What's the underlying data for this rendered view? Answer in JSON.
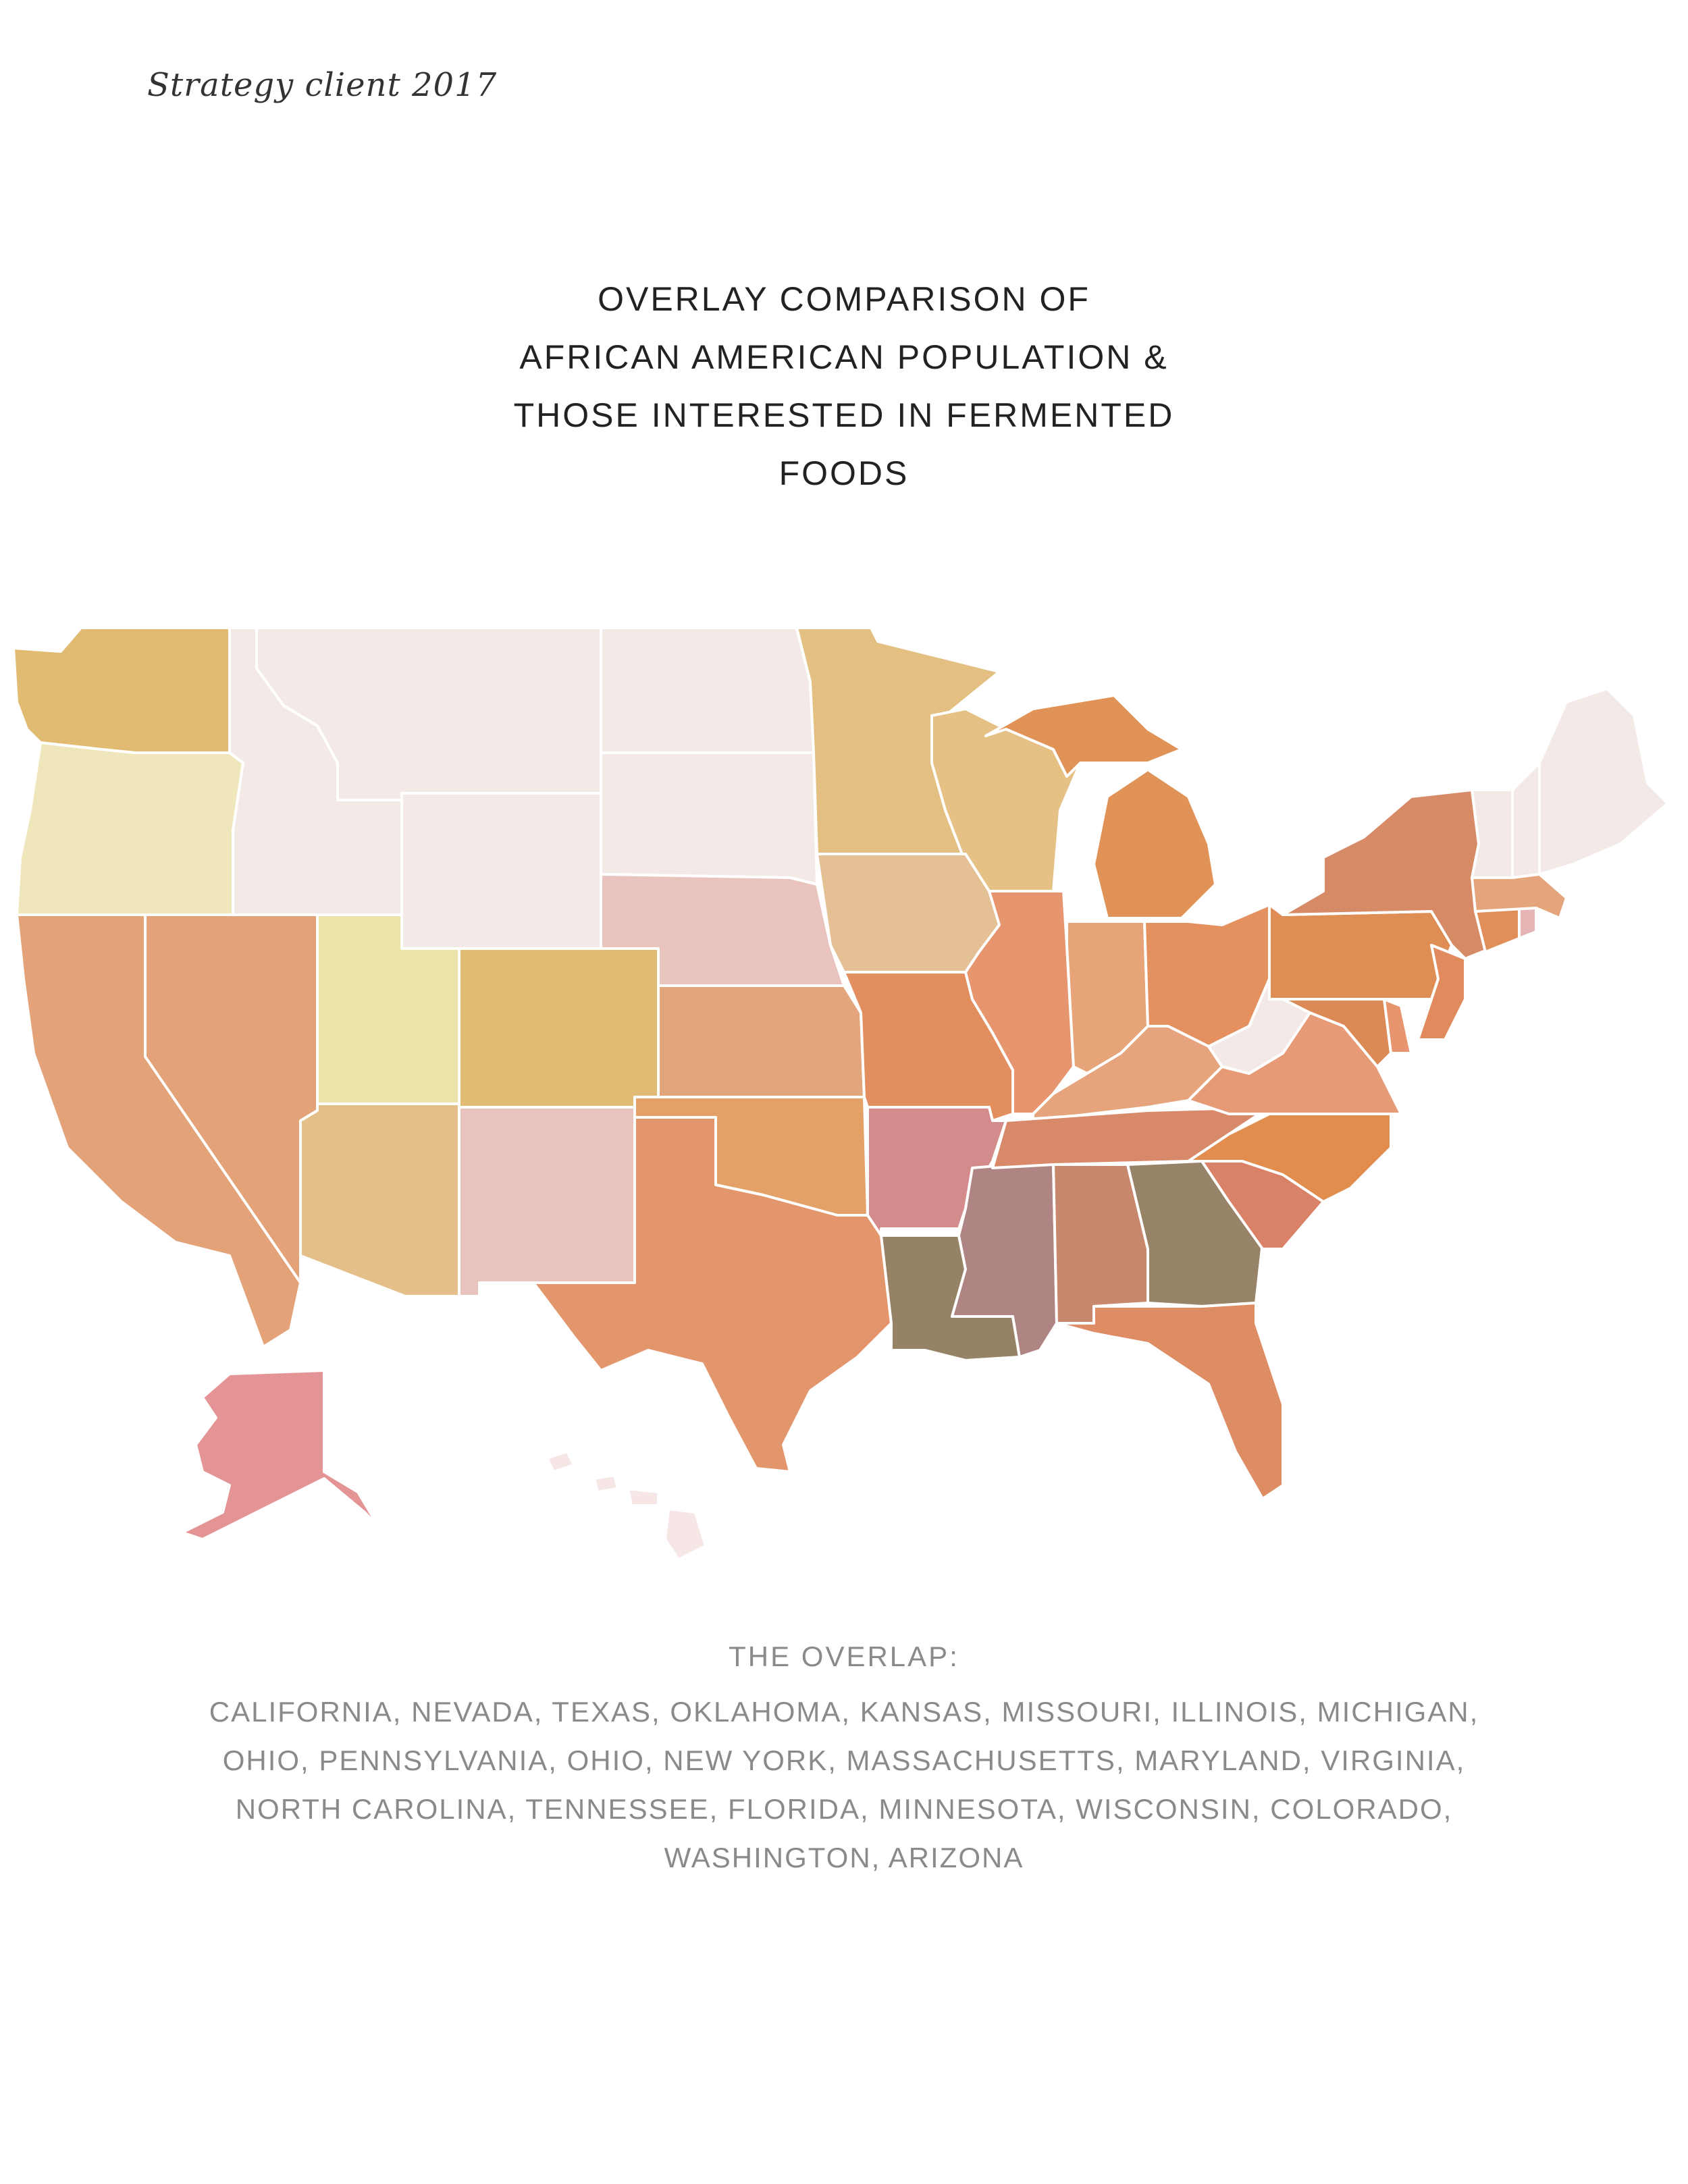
{
  "header": {
    "text": "Strategy client 2017"
  },
  "title": {
    "lines": [
      "OVERLAY COMPARISON OF",
      "AFRICAN AMERICAN POPULATION &",
      "THOSE INTERESTED IN FERMENTED",
      "FOODS"
    ]
  },
  "overlap": {
    "heading": "THE OVERLAP:",
    "lines": [
      "CALIFORNIA, NEVADA, TEXAS, OKLAHOMA, KANSAS, MISSOURI, ILLINOIS, MICHIGAN,",
      "OHIO, PENNSYLVANIA, OHIO, NEW YORK, MASSACHUSETTS, MARYLAND, VIRGINIA,",
      "NORTH CAROLINA, TENNESSEE, FLORIDA, MINNESOTA, WISCONSIN, COLORADO,",
      "WASHINGTON, ARIZONA"
    ]
  },
  "map": {
    "states": [
      {
        "id": "WA",
        "color": "#e2bb72"
      },
      {
        "id": "OR",
        "color": "#f0e6bb"
      },
      {
        "id": "CA",
        "color": "#e3a277"
      },
      {
        "id": "ID",
        "color": "#f3eae8"
      },
      {
        "id": "NV",
        "color": "#e3a277"
      },
      {
        "id": "MT",
        "color": "#f3eae8"
      },
      {
        "id": "WY",
        "color": "#f3eae8"
      },
      {
        "id": "UT",
        "color": "#ede3a8"
      },
      {
        "id": "AZ",
        "color": "#e4bf89"
      },
      {
        "id": "CO",
        "color": "#e1bb73"
      },
      {
        "id": "NM",
        "color": "#e9c4be"
      },
      {
        "id": "ND",
        "color": "#f3eae8"
      },
      {
        "id": "SD",
        "color": "#f3eae8"
      },
      {
        "id": "NE",
        "color": "#e9c4be"
      },
      {
        "id": "KS",
        "color": "#e3a57c"
      },
      {
        "id": "OK",
        "color": "#e3a067"
      },
      {
        "id": "TX",
        "color": "#e3956c"
      },
      {
        "id": "MN",
        "color": "#e3c081"
      },
      {
        "id": "IA",
        "color": "#e5c095"
      },
      {
        "id": "MO",
        "color": "#e28e5e"
      },
      {
        "id": "AR",
        "color": "#d38b8b"
      },
      {
        "id": "LA",
        "color": "#968265"
      },
      {
        "id": "WI",
        "color": "#e5c186"
      },
      {
        "id": "IL",
        "color": "#e6956f"
      },
      {
        "id": "MS",
        "color": "#ae8583"
      },
      {
        "id": "MI",
        "color": "#e09257"
      },
      {
        "id": "IN",
        "color": "#e6a478"
      },
      {
        "id": "KY",
        "color": "#e6a47d"
      },
      {
        "id": "TN",
        "color": "#d7896a"
      },
      {
        "id": "AL",
        "color": "#c8886d"
      },
      {
        "id": "OH",
        "color": "#e4915f"
      },
      {
        "id": "GA",
        "color": "#978468"
      },
      {
        "id": "FL",
        "color": "#de8c64"
      },
      {
        "id": "SC",
        "color": "#d98267"
      },
      {
        "id": "NC",
        "color": "#e08d4e"
      },
      {
        "id": "VA",
        "color": "#e79a76"
      },
      {
        "id": "WV",
        "color": "#f3eae8"
      },
      {
        "id": "PA",
        "color": "#de8e55"
      },
      {
        "id": "NY",
        "color": "#d68a66"
      },
      {
        "id": "MD",
        "color": "#dc8a55"
      },
      {
        "id": "DE",
        "color": "#e6956f"
      },
      {
        "id": "NJ",
        "color": "#e18a5e"
      },
      {
        "id": "CT",
        "color": "#e08f58"
      },
      {
        "id": "RI",
        "color": "#e5b4b4"
      },
      {
        "id": "MA",
        "color": "#e5a57c"
      },
      {
        "id": "VT",
        "color": "#f3eae8"
      },
      {
        "id": "NH",
        "color": "#f3eae8"
      },
      {
        "id": "ME",
        "color": "#f3eae8"
      },
      {
        "id": "AK",
        "color": "#e49494"
      },
      {
        "id": "HI",
        "color": "#f7e6e6"
      }
    ]
  }
}
